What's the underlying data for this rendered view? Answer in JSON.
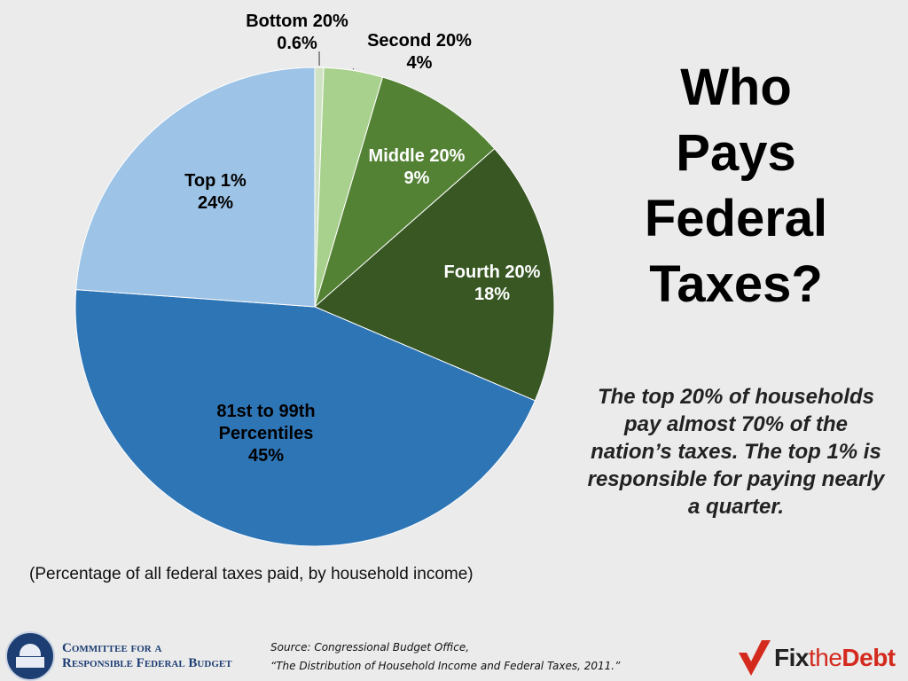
{
  "title_lines": [
    "Who",
    "Pays",
    "Federal",
    "Taxes?"
  ],
  "callout": "The top 20% of households pay almost 70% of the nation’s taxes. The top 1% is responsible for paying nearly a quarter.",
  "note": "(Percentage of all federal taxes paid, by household income)",
  "source": {
    "line1": "Source: Congressional Budget Office,",
    "line2": "“The Distribution of Household Income and Federal Taxes, 2011.”"
  },
  "org": {
    "line1": "Committee for a",
    "line2": "Responsible Federal Budget"
  },
  "brand": {
    "fix": "Fix",
    "the": "the",
    "debt": "Debt"
  },
  "colors": {
    "brand_red": "#d42a1e",
    "org_blue": "#1d3e73"
  },
  "chart_data": {
    "type": "pie",
    "start_angle_deg": 0,
    "direction": "clockwise",
    "slices": [
      {
        "label": "Bottom 20%",
        "value_label": "0.6%",
        "value": 0.6,
        "color": "#cfe2c4",
        "label_color": "#000000"
      },
      {
        "label": "Second 20%",
        "value_label": "4%",
        "value": 4,
        "color": "#a9d18e",
        "label_color": "#000000"
      },
      {
        "label": "Middle 20%",
        "value_label": "9%",
        "value": 9,
        "color": "#548235",
        "label_color": "#ffffff"
      },
      {
        "label": "Fourth 20%",
        "value_label": "18%",
        "value": 18,
        "color": "#385723",
        "label_color": "#ffffff"
      },
      {
        "label": "81st to 99th Percentiles",
        "value_label": "45%",
        "value": 45,
        "color": "#2e75b6",
        "label_color": "#000000"
      },
      {
        "label": "Top 1%",
        "value_label": "24%",
        "value": 24,
        "color": "#9dc3e6",
        "label_color": "#000000"
      }
    ]
  }
}
